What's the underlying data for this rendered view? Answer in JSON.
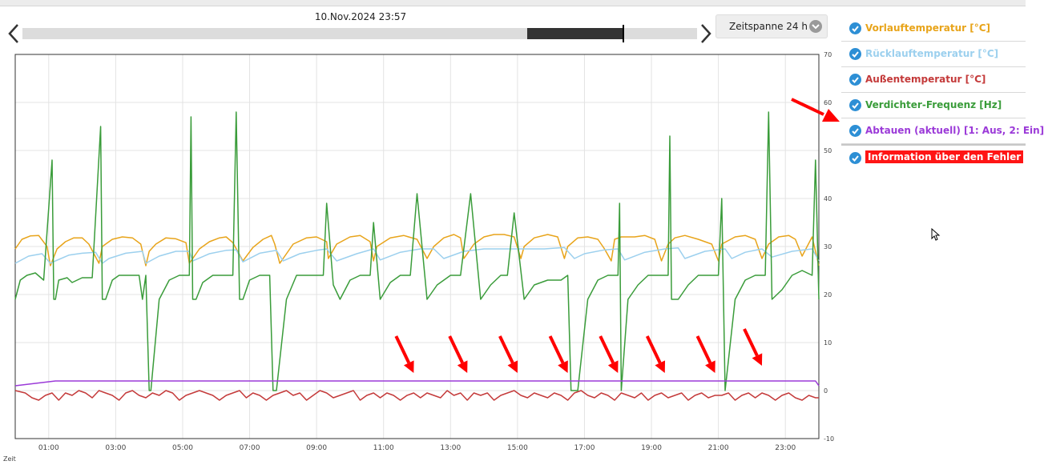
{
  "header": {
    "datetime": "10.Nov.2024 23:57",
    "timespan_label": "Zeitspanne 24 h"
  },
  "slider": {
    "window_start_fraction": 0.748,
    "window_end_fraction": 0.889
  },
  "legend": [
    {
      "label": "Vorlauftemperatur [°C]",
      "color": "#e8a41a",
      "checked": true
    },
    {
      "label": "Rücklauftemperatur [°C]",
      "color": "#9cd0ee",
      "checked": true
    },
    {
      "label": "Außentemperatur [°C]",
      "color": "#c43a3a",
      "checked": true
    },
    {
      "label": "Verdichter-Frequenz [Hz]",
      "color": "#3a9c3a",
      "checked": true
    },
    {
      "label": "Abtauen (aktuell) [1: Aus, 2: Ein]",
      "color": "#9b3ad8",
      "checked": true
    },
    {
      "label": "Information über den Fehler",
      "color": "#ff1515",
      "checked": true
    }
  ],
  "chart_data": {
    "type": "line",
    "xlabel": "Zeit",
    "ylabel": "",
    "x_range_hours": [
      0,
      24
    ],
    "ylim": [
      -10,
      70
    ],
    "yticks": [
      "70",
      "60",
      "50",
      "40",
      "30",
      "20",
      "10",
      "0",
      "-10"
    ],
    "xticks": [
      "01:00",
      "03:00",
      "05:00",
      "07:00",
      "09:00",
      "11:00",
      "13:00",
      "15:00",
      "17:00",
      "19:00",
      "21:00",
      "23:00"
    ],
    "grid": true,
    "series": [
      {
        "name": "Vorlauftemperatur [°C]",
        "color": "#e8a41a",
        "x": [
          0.0,
          0.2,
          0.45,
          0.7,
          0.95,
          1.05,
          1.25,
          1.5,
          1.75,
          2.0,
          2.2,
          2.5,
          2.6,
          2.9,
          3.2,
          3.5,
          3.75,
          3.9,
          4.0,
          4.2,
          4.5,
          4.8,
          5.1,
          5.2,
          5.5,
          5.8,
          6.1,
          6.3,
          6.5,
          6.8,
          7.1,
          7.4,
          7.65,
          7.75,
          7.9,
          8.3,
          8.7,
          9.0,
          9.3,
          9.35,
          9.6,
          10.0,
          10.3,
          10.6,
          10.7,
          10.8,
          11.2,
          11.6,
          12.0,
          12.3,
          12.5,
          12.8,
          13.1,
          13.3,
          13.4,
          13.7,
          14.0,
          14.3,
          14.6,
          14.9,
          15.1,
          15.2,
          15.5,
          15.9,
          16.2,
          16.4,
          16.5,
          16.8,
          17.1,
          17.4,
          17.6,
          17.8,
          17.9,
          18.1,
          18.5,
          18.8,
          19.1,
          19.3,
          19.5,
          19.7,
          20.0,
          20.4,
          20.8,
          21.0,
          21.1,
          21.5,
          21.8,
          22.1,
          22.3,
          22.5,
          22.8,
          23.1,
          23.3,
          23.5,
          23.8,
          24.0
        ],
        "y": [
          29.5,
          31.5,
          32.2,
          32.3,
          30.0,
          26.0,
          29.5,
          31.0,
          31.8,
          31.8,
          30.5,
          26.5,
          30.0,
          31.5,
          32.0,
          31.8,
          30.5,
          26.0,
          29.0,
          30.5,
          31.8,
          31.6,
          30.8,
          26.5,
          29.5,
          31.0,
          31.8,
          32.0,
          30.8,
          27.0,
          29.8,
          31.5,
          32.3,
          30.5,
          26.5,
          30.5,
          31.8,
          32.0,
          31.0,
          27.5,
          30.5,
          32.0,
          32.3,
          31.0,
          27.0,
          30.0,
          31.8,
          32.3,
          31.5,
          27.5,
          30.0,
          31.8,
          32.5,
          31.8,
          27.5,
          30.5,
          32.0,
          32.5,
          32.5,
          32.0,
          27.5,
          30.0,
          31.8,
          32.5,
          32.0,
          27.5,
          30.0,
          31.8,
          32.0,
          31.5,
          29.5,
          27.0,
          31.5,
          32.0,
          32.0,
          32.3,
          31.5,
          27.0,
          30.5,
          31.8,
          32.3,
          31.5,
          30.5,
          27.0,
          30.5,
          32.0,
          32.3,
          31.5,
          27.5,
          30.5,
          32.0,
          32.3,
          31.5,
          28.0,
          32.0,
          26.0
        ]
      },
      {
        "name": "Rücklauftemperatur [°C]",
        "color": "#9cd0ee",
        "x": [
          0.0,
          0.4,
          0.8,
          1.05,
          1.2,
          1.6,
          2.0,
          2.4,
          2.6,
          2.8,
          3.3,
          3.8,
          3.9,
          4.3,
          4.8,
          5.2,
          5.3,
          5.8,
          6.3,
          6.6,
          6.8,
          7.3,
          7.8,
          8.0,
          8.5,
          9.0,
          9.3,
          9.6,
          10.2,
          10.7,
          10.9,
          11.5,
          12.1,
          12.5,
          12.8,
          13.4,
          14.0,
          14.6,
          15.2,
          15.8,
          16.4,
          16.7,
          17.0,
          17.6,
          18.0,
          18.2,
          18.8,
          19.4,
          19.8,
          20.0,
          20.6,
          21.2,
          21.4,
          21.8,
          22.3,
          22.6,
          23.2,
          23.8,
          24.0
        ],
        "y": [
          26.5,
          28.0,
          28.5,
          26.5,
          27.0,
          28.2,
          28.6,
          28.8,
          26.5,
          27.5,
          28.6,
          29.0,
          26.5,
          28.0,
          29.0,
          29.0,
          27.0,
          28.5,
          29.2,
          29.3,
          26.8,
          28.6,
          29.2,
          27.0,
          28.5,
          29.2,
          29.5,
          27.0,
          28.5,
          29.5,
          27.2,
          28.8,
          29.5,
          29.5,
          27.5,
          29.0,
          29.5,
          29.5,
          29.5,
          29.5,
          29.8,
          27.5,
          28.5,
          29.3,
          29.5,
          27.2,
          28.8,
          29.5,
          29.7,
          27.5,
          29.0,
          29.5,
          27.5,
          28.8,
          29.5,
          27.8,
          29.0,
          29.5,
          27.0
        ]
      },
      {
        "name": "Außentemperatur [°C]",
        "color": "#c43a3a",
        "x": [
          0.0,
          0.3,
          0.5,
          0.7,
          0.9,
          1.1,
          1.3,
          1.5,
          1.7,
          1.9,
          2.1,
          2.3,
          2.5,
          2.7,
          2.9,
          3.1,
          3.3,
          3.5,
          3.7,
          3.9,
          4.1,
          4.3,
          4.5,
          4.7,
          4.9,
          5.1,
          5.3,
          5.5,
          5.7,
          5.9,
          6.1,
          6.3,
          6.5,
          6.7,
          6.9,
          7.1,
          7.3,
          7.5,
          7.7,
          7.9,
          8.1,
          8.3,
          8.5,
          8.7,
          8.9,
          9.1,
          9.3,
          9.5,
          9.7,
          9.9,
          10.1,
          10.3,
          10.5,
          10.7,
          10.9,
          11.1,
          11.3,
          11.5,
          11.7,
          11.9,
          12.1,
          12.3,
          12.5,
          12.7,
          12.9,
          13.1,
          13.3,
          13.5,
          13.7,
          13.9,
          14.1,
          14.3,
          14.5,
          14.7,
          14.9,
          15.1,
          15.3,
          15.5,
          15.7,
          15.9,
          16.1,
          16.3,
          16.5,
          16.7,
          16.9,
          17.1,
          17.3,
          17.5,
          17.7,
          17.9,
          18.1,
          18.3,
          18.5,
          18.7,
          18.9,
          19.1,
          19.3,
          19.5,
          19.7,
          19.9,
          20.1,
          20.3,
          20.5,
          20.7,
          20.9,
          21.1,
          21.3,
          21.5,
          21.7,
          21.9,
          22.1,
          22.3,
          22.5,
          22.7,
          22.9,
          23.1,
          23.3,
          23.5,
          23.7,
          23.9,
          24.0
        ],
        "y": [
          0,
          -0.5,
          -1.5,
          -2,
          -1,
          -0.5,
          -2,
          -0.5,
          -1,
          0,
          -0.5,
          -1.5,
          0,
          -0.5,
          -1,
          -2,
          -0.5,
          0,
          -1,
          -1.5,
          -0.5,
          -1,
          0,
          -0.5,
          -2,
          -1,
          -0.5,
          0,
          -0.5,
          -1,
          -2,
          -1,
          -0.5,
          0,
          -1.5,
          -0.5,
          -1,
          -2,
          -1,
          -0.5,
          0,
          -1,
          -0.5,
          -2,
          -1,
          0,
          -0.5,
          -1.5,
          -1,
          -0.5,
          0,
          -2,
          -1,
          -0.5,
          -1.5,
          -0.5,
          -1,
          -2,
          -1,
          -0.5,
          -1.5,
          -0.5,
          -1,
          -1.5,
          0,
          -1,
          -0.5,
          -2,
          -0.5,
          -1,
          -0.5,
          -2,
          -1,
          -0.5,
          0,
          -1,
          -1.5,
          -0.5,
          -1,
          -1.5,
          -0.5,
          -1,
          -2,
          -0.5,
          0,
          -1,
          -1.5,
          -0.5,
          -1,
          -2,
          -0.5,
          -1,
          -1.5,
          -0.5,
          -2,
          -1,
          -0.5,
          -1.5,
          -1,
          -0.5,
          -2,
          -1,
          -0.5,
          -1.5,
          -1,
          -1,
          -0.5,
          -2,
          -1,
          -0.5,
          -1.5,
          -0.5,
          -1,
          -2,
          -1,
          -0.5,
          -1.5,
          -2,
          -1,
          -1.5,
          -1.5
        ]
      },
      {
        "name": "Verdichter-Frequenz [Hz]",
        "color": "#3a9c3a",
        "x": [
          0.0,
          0.15,
          0.35,
          0.6,
          0.85,
          1.1,
          1.15,
          1.2,
          1.3,
          1.55,
          1.7,
          2.0,
          2.3,
          2.55,
          2.6,
          2.7,
          2.9,
          3.1,
          3.4,
          3.7,
          3.8,
          3.9,
          4.0,
          4.05,
          4.3,
          4.6,
          4.9,
          5.2,
          5.25,
          5.3,
          5.4,
          5.6,
          5.9,
          6.2,
          6.5,
          6.6,
          6.7,
          6.8,
          7.0,
          7.3,
          7.6,
          7.7,
          7.8,
          8.1,
          8.4,
          8.7,
          9.0,
          9.2,
          9.3,
          9.5,
          9.7,
          10.0,
          10.3,
          10.6,
          10.7,
          10.9,
          11.2,
          11.5,
          11.8,
          12.0,
          12.3,
          12.6,
          13.0,
          13.3,
          13.6,
          13.9,
          14.2,
          14.5,
          14.7,
          14.9,
          15.2,
          15.5,
          15.9,
          16.3,
          16.5,
          16.6,
          16.8,
          17.1,
          17.4,
          17.7,
          18.0,
          18.05,
          18.1,
          18.3,
          18.6,
          18.9,
          19.2,
          19.5,
          19.55,
          19.6,
          19.8,
          20.1,
          20.4,
          20.7,
          21.0,
          21.1,
          21.2,
          21.5,
          21.8,
          22.1,
          22.4,
          22.5,
          22.6,
          22.9,
          23.2,
          23.5,
          23.8,
          23.9,
          24.0
        ],
        "y": [
          19,
          23,
          24,
          24.5,
          23,
          48,
          19,
          19,
          23,
          23.5,
          22.5,
          23.5,
          23.5,
          55,
          19,
          19,
          23,
          24,
          24,
          24,
          19,
          24,
          0,
          0,
          19,
          23,
          24,
          24,
          57,
          19,
          19,
          22.5,
          24,
          24,
          24,
          58,
          19,
          19,
          23,
          24,
          24,
          0,
          0,
          19,
          24,
          24,
          24,
          24,
          39,
          22,
          19,
          23,
          24,
          24,
          35,
          19,
          22.5,
          24,
          24,
          41,
          19,
          22,
          24,
          24,
          41,
          19,
          22,
          24,
          24,
          37,
          19,
          22,
          23,
          23,
          24,
          0,
          0,
          19,
          23,
          24,
          24,
          39,
          0,
          19,
          22,
          24,
          24,
          24,
          53,
          19,
          19,
          22,
          24,
          24,
          24,
          40,
          0,
          19,
          23,
          24,
          24,
          58,
          19,
          21,
          24,
          25,
          24,
          48,
          19
        ]
      },
      {
        "name": "Abtauen (aktuell) [1: Aus, 2: Ein]",
        "color": "#9b3ad8",
        "baseline": 1,
        "x": [
          0.0,
          1.2,
          2.6,
          4.0,
          5.3,
          6.6,
          7.8,
          9.3,
          10.7,
          12.1,
          13.6,
          15.1,
          16.5,
          18.0,
          19.4,
          20.9,
          22.3,
          23.9,
          24.0
        ],
        "y": [
          1,
          2,
          2,
          2,
          2,
          2,
          2,
          2,
          2,
          2,
          2,
          2,
          2,
          2,
          2,
          2,
          2,
          2,
          1
        ]
      }
    ],
    "annotations": [
      {
        "type": "arrow",
        "x": 11.9,
        "y": 3,
        "color": "#ff0000"
      },
      {
        "type": "arrow",
        "x": 13.5,
        "y": 3,
        "color": "#ff0000"
      },
      {
        "type": "arrow",
        "x": 15.0,
        "y": 3,
        "color": "#ff0000"
      },
      {
        "type": "arrow",
        "x": 16.5,
        "y": 3,
        "color": "#ff0000"
      },
      {
        "type": "arrow",
        "x": 18.0,
        "y": 3,
        "color": "#ff0000"
      },
      {
        "type": "arrow",
        "x": 19.4,
        "y": 3,
        "color": "#ff0000"
      },
      {
        "type": "arrow",
        "x": 20.9,
        "y": 3,
        "color": "#ff0000"
      },
      {
        "type": "arrow",
        "x": 22.3,
        "y": 4.5,
        "color": "#ff0000"
      }
    ]
  }
}
